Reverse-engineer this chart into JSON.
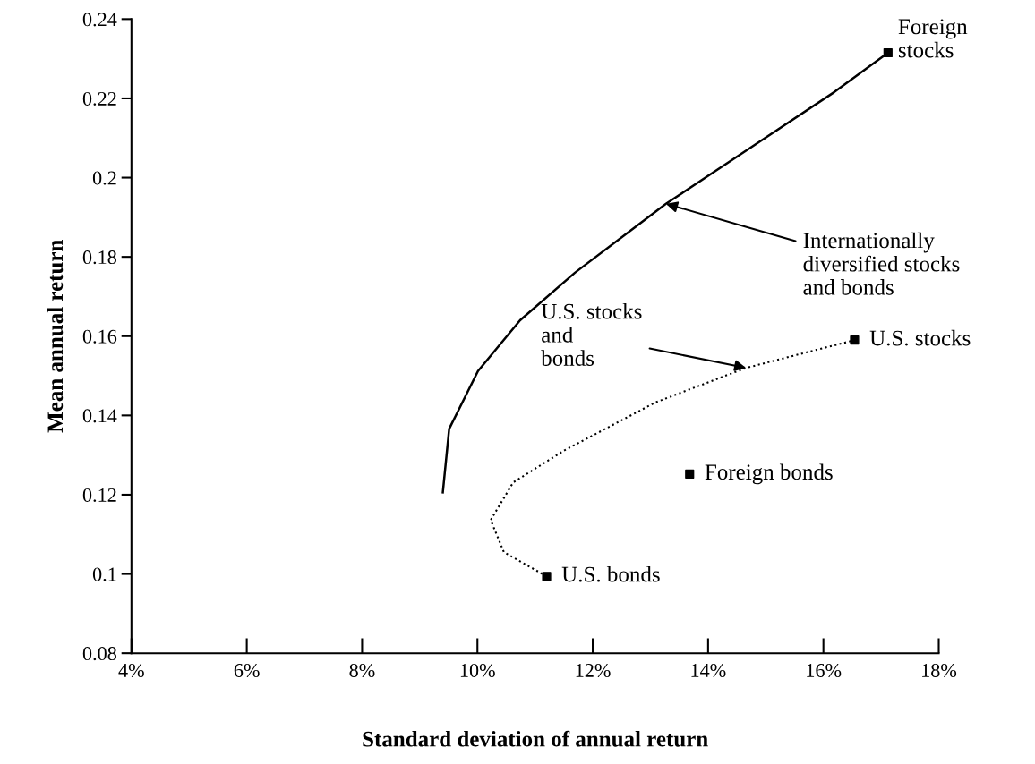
{
  "chart_data": {
    "type": "line",
    "xlabel": "Standard deviation of annual return",
    "ylabel": "Mean annual return",
    "xlim": [
      4,
      18
    ],
    "xticks": [
      {
        "value": 4,
        "label": "4%"
      },
      {
        "value": 6,
        "label": "6%"
      },
      {
        "value": 8,
        "label": "8%"
      },
      {
        "value": 10,
        "label": "10%"
      },
      {
        "value": 12,
        "label": "12%"
      },
      {
        "value": 14,
        "label": "14%"
      },
      {
        "value": 16,
        "label": "16%"
      },
      {
        "value": 18,
        "label": "18%"
      }
    ],
    "ylim": [
      0.08,
      0.24
    ],
    "yticks": [
      0.08,
      0.1,
      0.12,
      0.14,
      0.16,
      0.18,
      0.2,
      0.22,
      0.24
    ],
    "grid": false,
    "series": [
      {
        "line_style": "solid",
        "color": "#000000",
        "x": [
          9.4,
          9.51,
          10.01,
          10.74,
          11.69,
          13.27,
          14.79,
          16.19,
          17.12
        ],
        "values": [
          0.1206,
          0.1366,
          0.1512,
          0.164,
          0.176,
          0.1934,
          0.2081,
          0.2216,
          0.2315
        ]
      },
      {
        "line_style": "dotted",
        "color": "#000000",
        "x": [
          11.2,
          10.46,
          10.23,
          10.62,
          11.51,
          13.09,
          14.66,
          16.54
        ],
        "values": [
          0.0994,
          0.1055,
          0.1136,
          0.1231,
          0.1312,
          0.1433,
          0.152,
          0.159
        ]
      },
      {
        "type": "scatter",
        "marker": "square",
        "color": "#000000",
        "x": [
          11.2,
          13.68,
          16.54,
          17.12
        ],
        "values": [
          0.0994,
          0.1252,
          0.159,
          0.2315
        ]
      }
    ],
    "annotations": [
      {
        "text": "Internationally\ndiversified stocks\nand bonds",
        "x": 13.27,
        "y": 0.1934
      },
      {
        "text": "U.S. stocks\nand\nbonds",
        "x": 14.66,
        "y": 0.152
      },
      {
        "text": "Foreign\nstocks",
        "x": 17.12,
        "y": 0.2315
      },
      {
        "text": "U.S. stocks",
        "x": 16.54,
        "y": 0.159
      },
      {
        "text": "Foreign bonds",
        "x": 13.68,
        "y": 0.1252
      },
      {
        "text": "U.S. bonds",
        "x": 11.2,
        "y": 0.0994
      }
    ]
  }
}
